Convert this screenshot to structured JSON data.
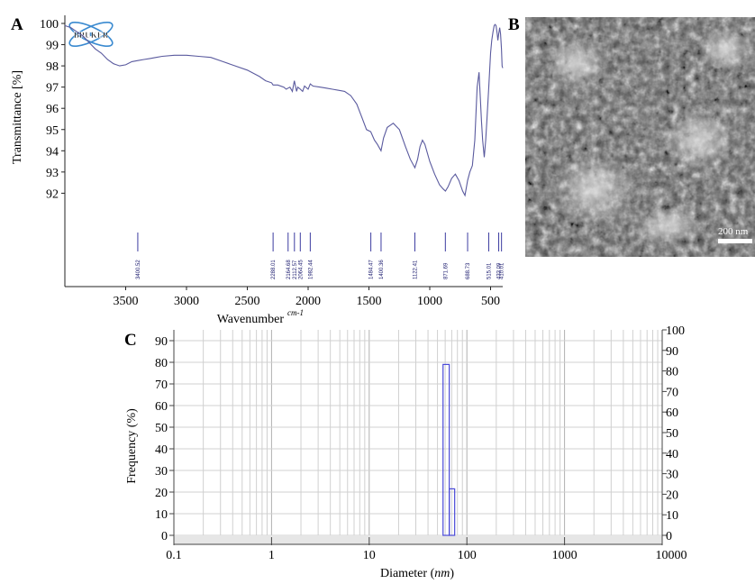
{
  "panels": {
    "a": "A",
    "b": "B",
    "c": "C"
  },
  "colors": {
    "spectrum": "#5a5a9e",
    "peak_marker": "#3c3ca0",
    "histogram": "#4a4ad8",
    "grid": "#c8c8c8",
    "bruker_logo": "#3a8ad0"
  },
  "logo_text": "BRUKER",
  "sem": {
    "scale_bar_label": "200 nm"
  },
  "chart_data": [
    {
      "type": "line",
      "panel": "A",
      "xlabel": "Wavenumber",
      "xlabel_unit": "cm-1",
      "ylabel": "Transmittance [%]",
      "xlim": [
        4000,
        400
      ],
      "x_ticks": [
        3500,
        3000,
        2500,
        2000,
        1500,
        1000,
        500
      ],
      "ylim": [
        91,
        100
      ],
      "y_ticks": [
        92,
        93,
        94,
        95,
        96,
        97,
        98,
        99,
        100
      ],
      "series": [
        {
          "x": [
            4000,
            3950,
            3900,
            3850,
            3800,
            3750,
            3700,
            3650,
            3600,
            3550,
            3500,
            3450,
            3400,
            3350,
            3300,
            3250,
            3200,
            3100,
            3000,
            2900,
            2800,
            2700,
            2600,
            2500,
            2400,
            2350,
            2300,
            2288,
            2250,
            2200,
            2180,
            2165,
            2150,
            2130,
            2113,
            2095,
            2085,
            2064,
            2045,
            2030,
            2000,
            1982,
            1960,
            1900,
            1850,
            1800,
            1750,
            1700,
            1650,
            1600,
            1560,
            1520,
            1485,
            1455,
            1430,
            1401,
            1380,
            1350,
            1300,
            1250,
            1200,
            1160,
            1122,
            1100,
            1080,
            1060,
            1040,
            1000,
            960,
            920,
            890,
            871,
            850,
            820,
            790,
            760,
            730,
            710,
            689,
            670,
            650,
            630,
            610,
            595,
            585,
            575,
            565,
            552,
            540,
            530,
            515,
            500,
            490,
            480,
            470,
            463,
            455,
            445,
            440,
            433,
            425,
            418,
            410,
            405,
            400
          ],
          "y": [
            99.9,
            99.8,
            99.6,
            99.4,
            99.1,
            98.8,
            98.6,
            98.3,
            98.1,
            98.0,
            98.05,
            98.2,
            98.25,
            98.3,
            98.35,
            98.4,
            98.45,
            98.5,
            98.5,
            98.45,
            98.4,
            98.2,
            98.0,
            97.8,
            97.5,
            97.3,
            97.2,
            97.1,
            97.1,
            97.0,
            96.9,
            96.95,
            97.0,
            96.8,
            97.3,
            96.8,
            97.0,
            96.9,
            96.8,
            97.05,
            96.9,
            97.15,
            97.05,
            97.0,
            96.95,
            96.9,
            96.85,
            96.8,
            96.6,
            96.2,
            95.6,
            95.0,
            94.9,
            94.5,
            94.3,
            94.0,
            94.6,
            95.1,
            95.3,
            95.0,
            94.2,
            93.6,
            93.2,
            93.6,
            94.2,
            94.5,
            94.3,
            93.5,
            92.9,
            92.4,
            92.2,
            92.1,
            92.3,
            92.7,
            92.9,
            92.6,
            92.1,
            91.9,
            92.6,
            93.0,
            93.3,
            94.5,
            97.0,
            97.7,
            96.6,
            95.4,
            94.5,
            93.7,
            94.5,
            95.5,
            97.0,
            98.6,
            99.2,
            99.6,
            99.9,
            99.95,
            99.9,
            99.5,
            99.2,
            99.5,
            99.8,
            99.5,
            98.8,
            98.0,
            97.9
          ]
        }
      ],
      "peaks": [
        "3400.52",
        "2288.01",
        "2164.68",
        "2112.57",
        "2064.45",
        "1982.44",
        "1484.47",
        "1400.36",
        "1122.41",
        "871.69",
        "688.73",
        "515.01",
        "433.09",
        "410.01"
      ]
    },
    {
      "type": "bar",
      "panel": "C",
      "xlabel": "Diameter",
      "xlabel_unit": "nm",
      "ylabel": "Frequency (%)",
      "x_scale": "log",
      "xlim": [
        0.1,
        10000
      ],
      "x_ticks": [
        "0.1",
        "1",
        "10",
        "100",
        "1000",
        "10000"
      ],
      "ylim": [
        0,
        95
      ],
      "y_ticks_left": [
        0,
        10,
        20,
        30,
        40,
        50,
        60,
        70,
        80,
        90
      ],
      "ylim_right": [
        0,
        100
      ],
      "y_ticks_right": [
        0,
        10,
        20,
        30,
        40,
        50,
        60,
        70,
        80,
        90,
        100
      ],
      "bins": [
        {
          "x0": 57,
          "x1": 66,
          "value": 79
        },
        {
          "x0": 66,
          "x1": 75,
          "value": 21.5
        }
      ]
    }
  ]
}
